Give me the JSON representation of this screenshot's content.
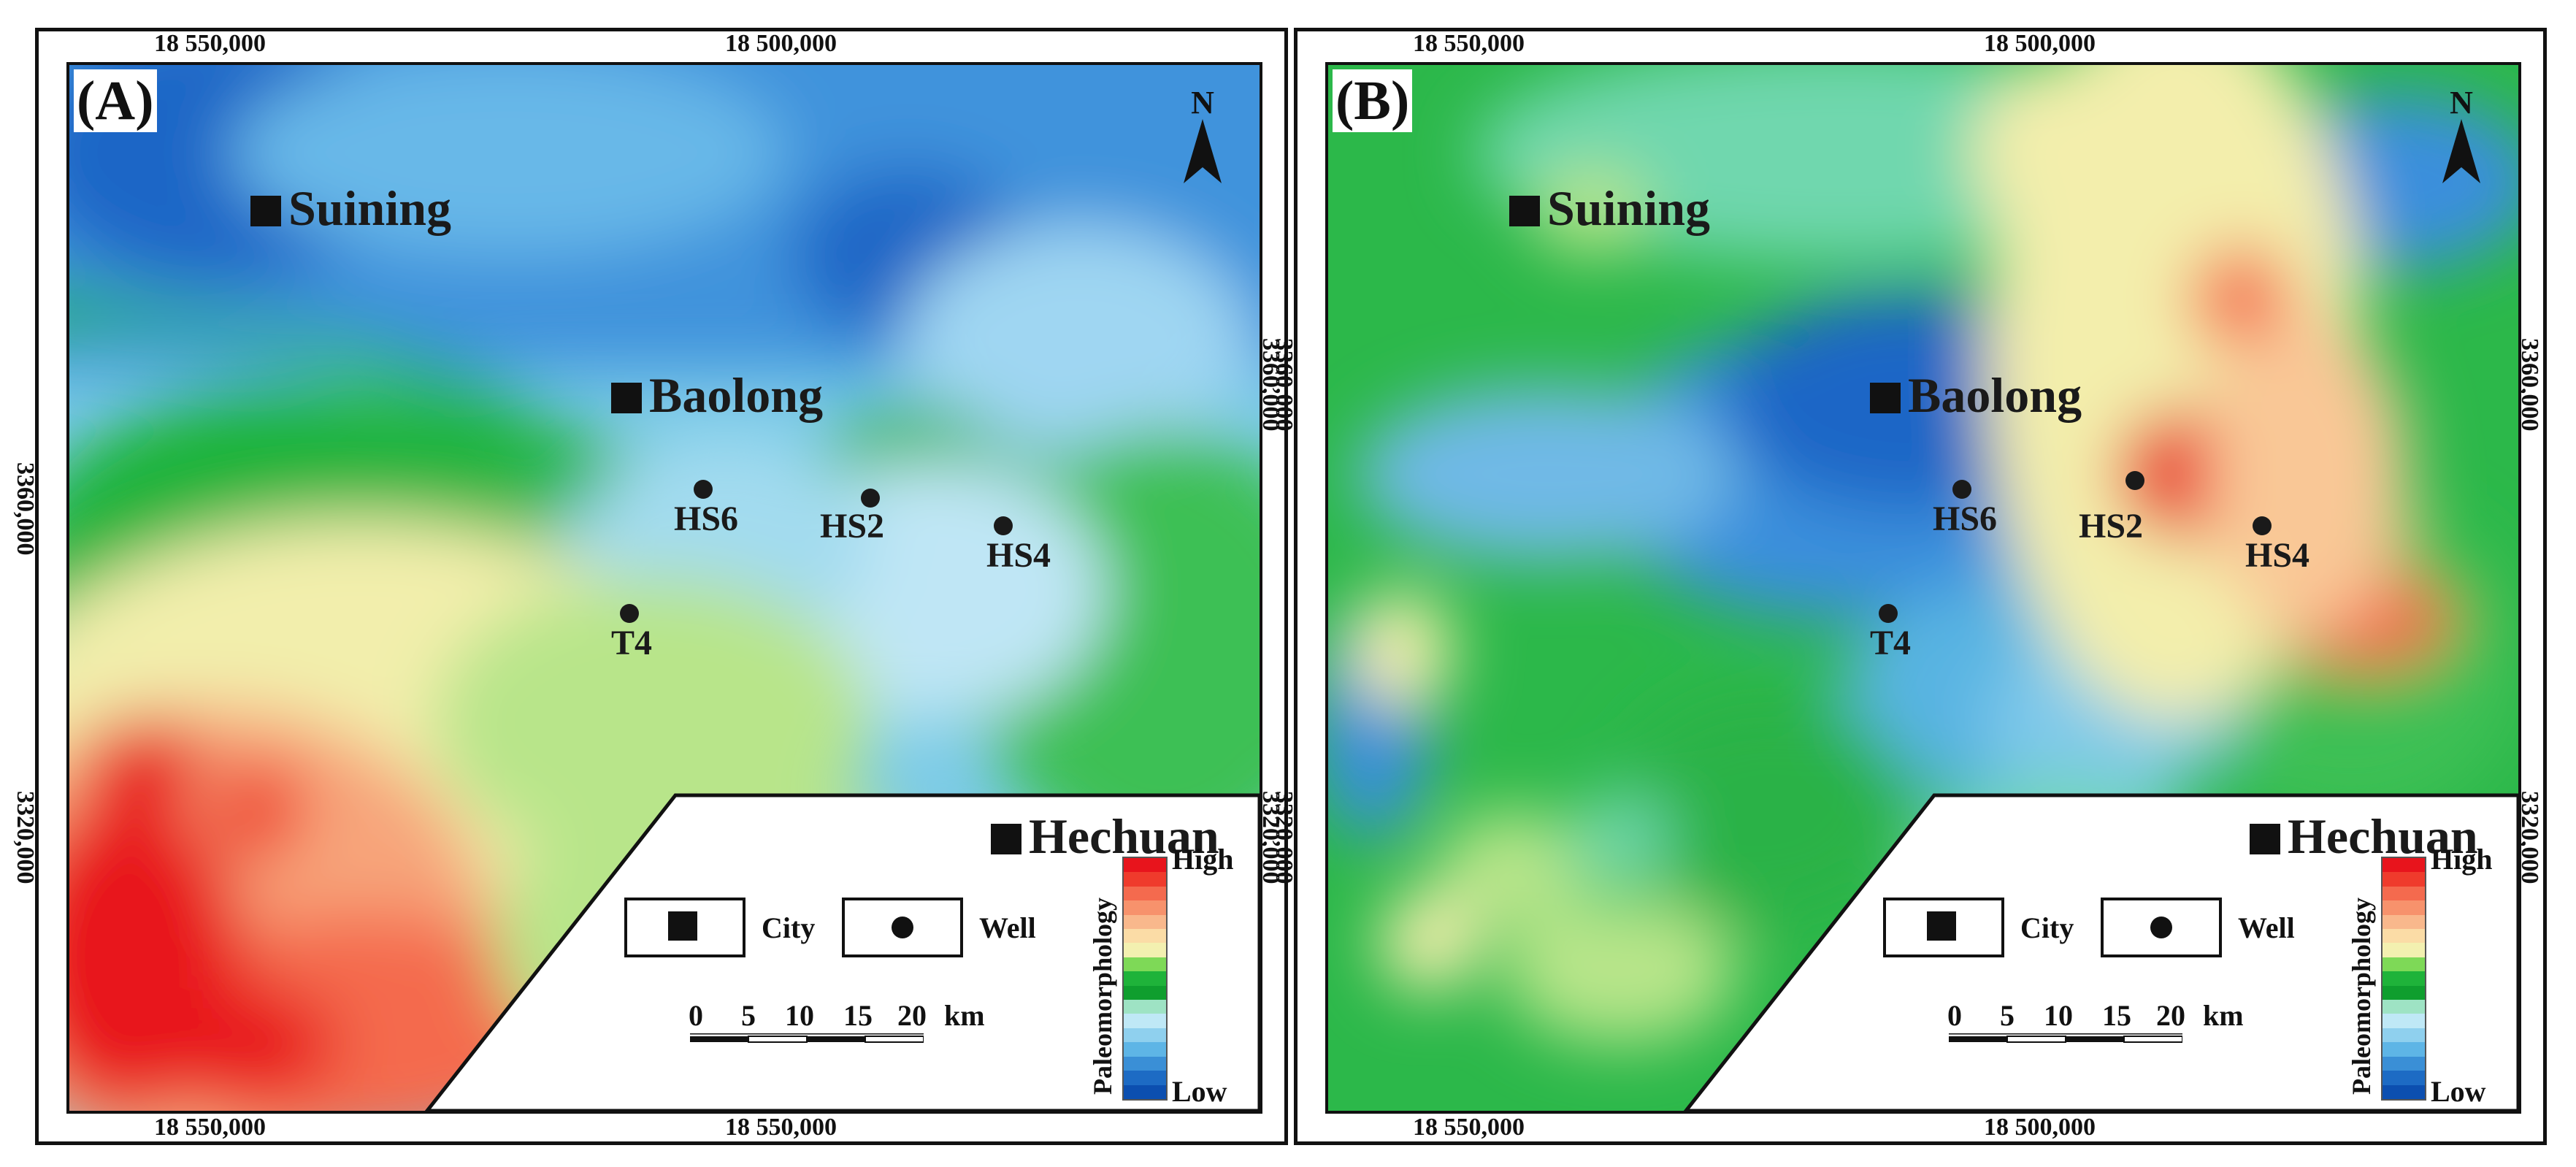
{
  "panels": [
    {
      "letter": "(A)",
      "top_coords": [
        "18 550,000",
        "18 500,000"
      ],
      "bottom_coords": [
        "18 550,000",
        "18 550,000"
      ],
      "side_coords": [
        "3360,000",
        "3320,000"
      ]
    },
    {
      "letter": "(B)",
      "top_coords": [
        "18 550,000",
        "18 500,000"
      ],
      "bottom_coords": [
        "18 550,000",
        "18 500,000"
      ],
      "side_coords": [
        "3360,000",
        "3320,000"
      ]
    }
  ],
  "cities": {
    "suining": "Suining",
    "baolong": "Baolong",
    "hechuan": "Hechuan"
  },
  "wells": {
    "hs6": "HS6",
    "hs2": "HS2",
    "hs4": "HS4",
    "t4": "T4"
  },
  "north_label": "N",
  "legend": {
    "city": "City",
    "well": "Well"
  },
  "scale_bar": {
    "ticks": [
      "0",
      "5",
      "10",
      "15",
      "20"
    ],
    "unit": "km"
  },
  "colorbar": {
    "title": "Paleomorphology",
    "high": "High",
    "low": "Low",
    "colors": [
      "#e8141c",
      "#ef3b2c",
      "#f46a4e",
      "#f7926c",
      "#f9b88c",
      "#fbdca6",
      "#f3f0b0",
      "#7ed957",
      "#1fb33a",
      "#0f9e2e",
      "#9ee3c4",
      "#bfe8f6",
      "#8fd0ee",
      "#5eb5e6",
      "#3a8fd6",
      "#1d6bc4",
      "#0c4fb0"
    ]
  },
  "colors": {
    "red": "#e8141c",
    "orange": "#f6a77a",
    "yellow": "#f3eeac",
    "lightgreen": "#b8e58a",
    "green": "#1fb33a",
    "teal": "#6fd7ae",
    "lightblue": "#b7e2f4",
    "blue": "#3b8fdc",
    "darkblue": "#1a5cc0"
  }
}
